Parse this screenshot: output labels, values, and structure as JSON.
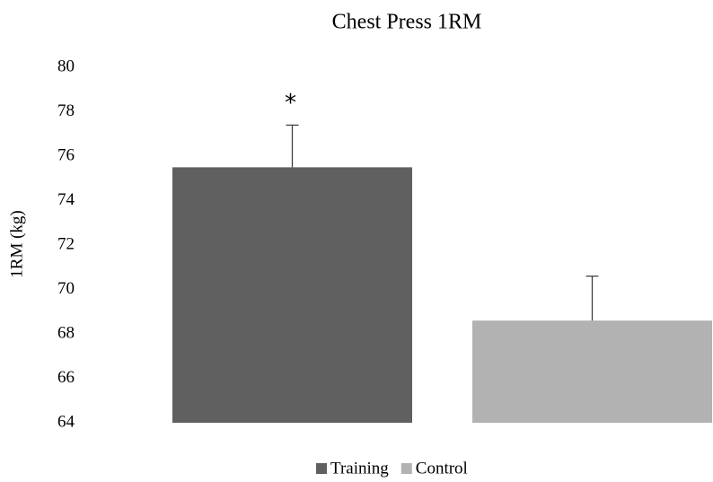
{
  "chart_data": {
    "type": "bar",
    "title": "Chest Press 1RM",
    "y_label": "1RM (kg)",
    "series": [
      {
        "name": "Training",
        "color": "#606060",
        "values": [
          75.5
        ],
        "errors": [
          1.9
        ]
      },
      {
        "name": "Control",
        "color": "#b2b2b2",
        "values": [
          68.6
        ],
        "errors": [
          2.0
        ]
      }
    ],
    "annotations": [
      "*"
    ],
    "ylim": [
      64,
      80
    ],
    "yticks": [
      64,
      66,
      68,
      70,
      72,
      74,
      76,
      78,
      80
    ],
    "grid": false,
    "legend": "bottom"
  }
}
